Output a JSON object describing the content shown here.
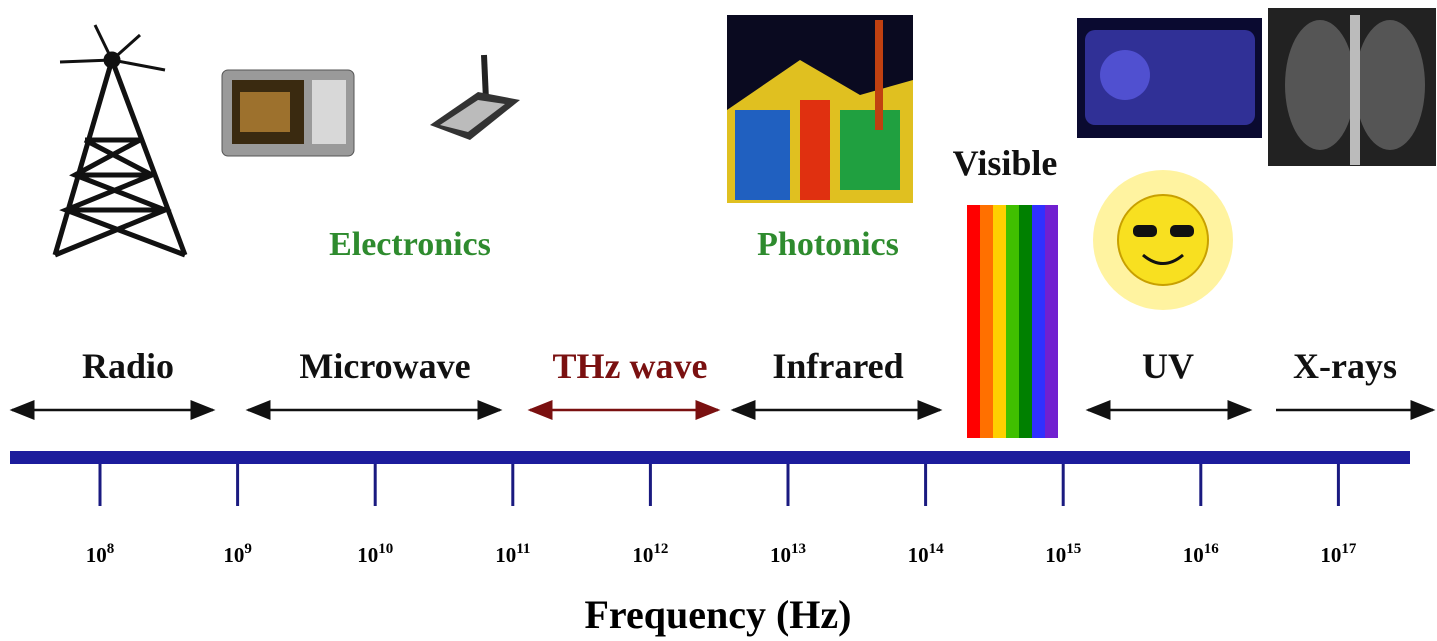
{
  "bands": [
    "Radio",
    "Microwave",
    "THz wave",
    "Infrared",
    "Visible",
    "UV",
    "X-rays"
  ],
  "groups": [
    "Electronics",
    "Photonics"
  ],
  "axis": {
    "label": "Frequency (Hz)",
    "ticks": [
      {
        "base": "10",
        "exponent": "8"
      },
      {
        "base": "10",
        "exponent": "9"
      },
      {
        "base": "10",
        "exponent": "10"
      },
      {
        "base": "10",
        "exponent": "11"
      },
      {
        "base": "10",
        "exponent": "12"
      },
      {
        "base": "10",
        "exponent": "13"
      },
      {
        "base": "10",
        "exponent": "14"
      },
      {
        "base": "10",
        "exponent": "15"
      },
      {
        "base": "10",
        "exponent": "16"
      },
      {
        "base": "10",
        "exponent": "17"
      }
    ]
  }
}
